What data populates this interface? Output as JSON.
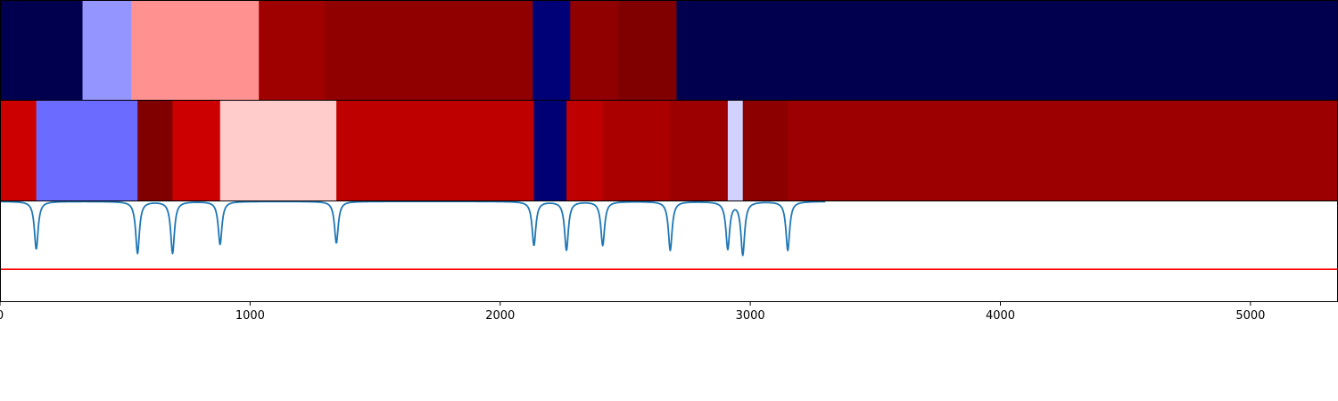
{
  "chart_data": [
    {
      "type": "heatmap",
      "title": "",
      "xlabel": "",
      "ylabel": "",
      "xlim": [
        0,
        5350
      ],
      "cmap": "seismic",
      "segments": [
        {
          "start": 0,
          "end": 330,
          "color": "#00004f"
        },
        {
          "start": 330,
          "end": 525,
          "color": "#9595ff"
        },
        {
          "start": 525,
          "end": 1035,
          "color": "#ff9191"
        },
        {
          "start": 1035,
          "end": 1300,
          "color": "#9f0000"
        },
        {
          "start": 1300,
          "end": 2130,
          "color": "#910000"
        },
        {
          "start": 2130,
          "end": 2280,
          "color": "#000077"
        },
        {
          "start": 2280,
          "end": 2470,
          "color": "#910000"
        },
        {
          "start": 2470,
          "end": 2705,
          "color": "#800000"
        },
        {
          "start": 2705,
          "end": 5350,
          "color": "#00004f"
        }
      ]
    },
    {
      "type": "heatmap",
      "title": "",
      "xlabel": "",
      "ylabel": "",
      "xlim": [
        0,
        5350
      ],
      "cmap": "seismic",
      "segments": [
        {
          "start": 0,
          "end": 145,
          "color": "#cd0000"
        },
        {
          "start": 145,
          "end": 550,
          "color": "#6b6bff"
        },
        {
          "start": 550,
          "end": 690,
          "color": "#800000"
        },
        {
          "start": 690,
          "end": 880,
          "color": "#cd0000"
        },
        {
          "start": 880,
          "end": 1345,
          "color": "#ffcbcb"
        },
        {
          "start": 1345,
          "end": 2135,
          "color": "#bf0000"
        },
        {
          "start": 2135,
          "end": 2265,
          "color": "#000075"
        },
        {
          "start": 2265,
          "end": 2410,
          "color": "#bf0000"
        },
        {
          "start": 2410,
          "end": 2680,
          "color": "#ab0000"
        },
        {
          "start": 2680,
          "end": 2910,
          "color": "#9c0000"
        },
        {
          "start": 2910,
          "end": 2970,
          "color": "#d2d2ff"
        },
        {
          "start": 2970,
          "end": 3150,
          "color": "#8c0000"
        },
        {
          "start": 3150,
          "end": 5350,
          "color": "#9c0000"
        }
      ]
    },
    {
      "type": "line",
      "title": "",
      "xlabel": "",
      "ylabel": "",
      "xlim": [
        0,
        5350
      ],
      "ylim": [
        -1.0,
        0.0
      ],
      "x_ticks": [
        0,
        1000,
        2000,
        3000,
        4000,
        5000
      ],
      "x_tick_labels": [
        "0",
        "1000",
        "2000",
        "3000",
        "4000",
        "5000"
      ],
      "grid": false,
      "series": [
        {
          "color": "#1f77b4",
          "shape": "sum of sharp dips",
          "dips": [
            {
              "x": 145,
              "depth": -0.48
            },
            {
              "x": 550,
              "depth": -0.52
            },
            {
              "x": 690,
              "depth": -0.52
            },
            {
              "x": 880,
              "depth": -0.43
            },
            {
              "x": 1345,
              "depth": -0.42
            },
            {
              "x": 2135,
              "depth": -0.44
            },
            {
              "x": 2265,
              "depth": -0.49
            },
            {
              "x": 2410,
              "depth": -0.44
            },
            {
              "x": 2680,
              "depth": -0.49
            },
            {
              "x": 2910,
              "depth": -0.47
            },
            {
              "x": 2970,
              "depth": -0.53
            },
            {
              "x": 3150,
              "depth": -0.49
            }
          ]
        }
      ],
      "hline": {
        "y": -0.68,
        "color": "#ff0000"
      }
    }
  ]
}
